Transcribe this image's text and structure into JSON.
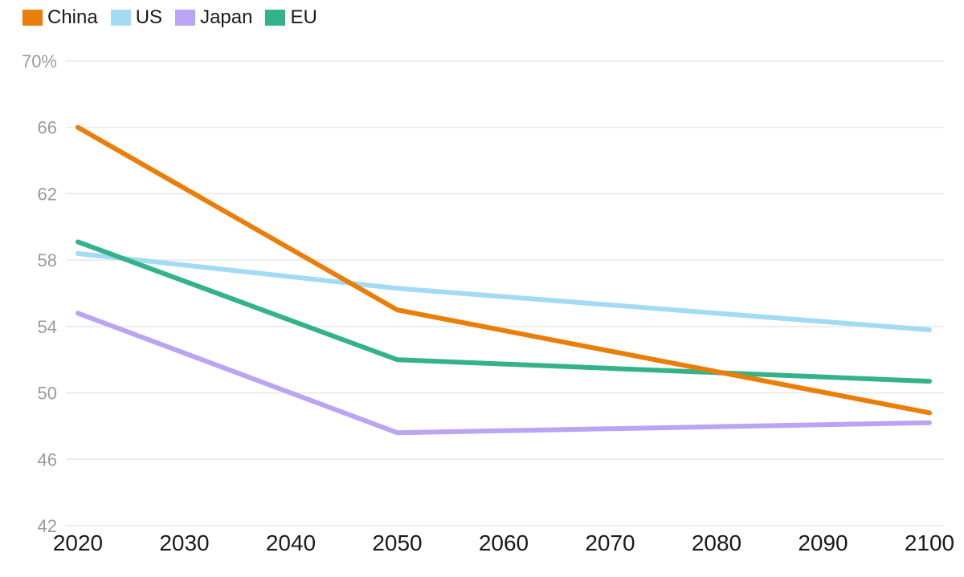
{
  "chart_data": {
    "type": "line",
    "title": "",
    "xlabel": "",
    "ylabel": "",
    "xlim": [
      2020,
      2100
    ],
    "ylim": [
      42,
      70
    ],
    "grid": "horizontal",
    "legend_position": "top-left",
    "x": [
      2020,
      2050,
      2100
    ],
    "series": [
      {
        "name": "China",
        "color": "#E97E08",
        "values": [
          66.0,
          55.0,
          48.8
        ]
      },
      {
        "name": "US",
        "color": "#A3DBF5",
        "values": [
          58.4,
          56.3,
          53.8
        ]
      },
      {
        "name": "Japan",
        "color": "#BAA4F3",
        "values": [
          54.8,
          47.6,
          48.2
        ]
      },
      {
        "name": "EU",
        "color": "#34B38A",
        "values": [
          59.1,
          52.0,
          50.7
        ]
      }
    ],
    "draw_order": [
      "US",
      "Japan",
      "EU",
      "China"
    ],
    "x_ticks": [
      {
        "value": 2020,
        "label": "2020"
      },
      {
        "value": 2030,
        "label": "2030"
      },
      {
        "value": 2040,
        "label": "2040"
      },
      {
        "value": 2050,
        "label": "2050"
      },
      {
        "value": 2060,
        "label": "2060"
      },
      {
        "value": 2070,
        "label": "2070"
      },
      {
        "value": 2080,
        "label": "2080"
      },
      {
        "value": 2090,
        "label": "2090"
      },
      {
        "value": 2100,
        "label": "2100"
      }
    ],
    "y_ticks": [
      {
        "value": 70,
        "label": "70%"
      },
      {
        "value": 66,
        "label": "66"
      },
      {
        "value": 62,
        "label": "62"
      },
      {
        "value": 58,
        "label": "58"
      },
      {
        "value": 54,
        "label": "54"
      },
      {
        "value": 50,
        "label": "50"
      },
      {
        "value": 46,
        "label": "46"
      },
      {
        "value": 42,
        "label": "42"
      }
    ]
  },
  "style": {
    "background": "#FFFFFF",
    "grid_color": "#E8E8E8",
    "y_tick_color": "#9B9B9B",
    "x_tick_color": "#1A1A1A",
    "legend_text_color": "#1A1A1A"
  }
}
